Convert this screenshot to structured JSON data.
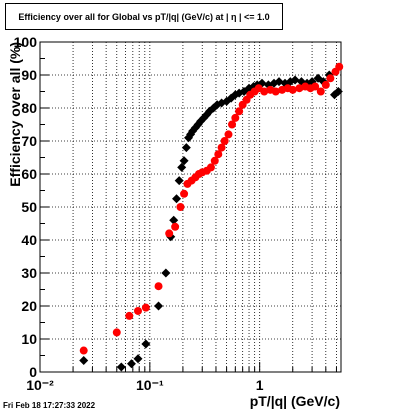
{
  "timestamp": "Fri Feb 18 17:27:33 2022",
  "chart_data": {
    "type": "scatter",
    "title": "Efficiency over all for Global vs pT/|q| (GeV/c) at |  η  | <= 1.0",
    "xlabel": "pT/|q| (GeV/c)",
    "ylabel": "Efficiency over all (%)",
    "xscale": "log",
    "xlim": [
      0.01,
      5.5
    ],
    "ylim": [
      0,
      100
    ],
    "xticks": [
      {
        "value": 0.01,
        "label": "10⁻²"
      },
      {
        "value": 0.1,
        "label": "10⁻¹"
      },
      {
        "value": 1,
        "label": "1"
      }
    ],
    "yticks": [
      0,
      10,
      20,
      30,
      40,
      50,
      60,
      70,
      80,
      90,
      100
    ],
    "grid": true,
    "series": [
      {
        "color": "#000000",
        "marker": "diamond",
        "points": [
          {
            "x": 0.025,
            "y": 3.5
          },
          {
            "x": 0.055,
            "y": 1.5
          },
          {
            "x": 0.068,
            "y": 2.5
          },
          {
            "x": 0.078,
            "y": 4
          },
          {
            "x": 0.092,
            "y": 8.5
          },
          {
            "x": 0.12,
            "y": 20
          },
          {
            "x": 0.14,
            "y": 30
          },
          {
            "x": 0.155,
            "y": 41
          },
          {
            "x": 0.165,
            "y": 46
          },
          {
            "x": 0.175,
            "y": 52.5
          },
          {
            "x": 0.185,
            "y": 58
          },
          {
            "x": 0.195,
            "y": 62
          },
          {
            "x": 0.205,
            "y": 64
          },
          {
            "x": 0.215,
            "y": 68
          },
          {
            "x": 0.225,
            "y": 71
          },
          {
            "x": 0.235,
            "y": 72
          },
          {
            "x": 0.245,
            "y": 73
          },
          {
            "x": 0.26,
            "y": 74
          },
          {
            "x": 0.275,
            "y": 75
          },
          {
            "x": 0.29,
            "y": 76
          },
          {
            "x": 0.31,
            "y": 77
          },
          {
            "x": 0.33,
            "y": 78
          },
          {
            "x": 0.35,
            "y": 79
          },
          {
            "x": 0.38,
            "y": 80
          },
          {
            "x": 0.41,
            "y": 81
          },
          {
            "x": 0.45,
            "y": 81.5
          },
          {
            "x": 0.5,
            "y": 82
          },
          {
            "x": 0.55,
            "y": 83
          },
          {
            "x": 0.6,
            "y": 84
          },
          {
            "x": 0.65,
            "y": 84.5
          },
          {
            "x": 0.72,
            "y": 85
          },
          {
            "x": 0.8,
            "y": 86
          },
          {
            "x": 0.88,
            "y": 86.5
          },
          {
            "x": 0.95,
            "y": 87
          },
          {
            "x": 1.05,
            "y": 87.5
          },
          {
            "x": 1.2,
            "y": 87
          },
          {
            "x": 1.35,
            "y": 87.5
          },
          {
            "x": 1.5,
            "y": 88
          },
          {
            "x": 1.7,
            "y": 87.5
          },
          {
            "x": 1.9,
            "y": 88
          },
          {
            "x": 2.1,
            "y": 88.5
          },
          {
            "x": 2.4,
            "y": 88
          },
          {
            "x": 2.7,
            "y": 87.5
          },
          {
            "x": 3.0,
            "y": 88
          },
          {
            "x": 3.4,
            "y": 89
          },
          {
            "x": 3.8,
            "y": 88
          },
          {
            "x": 4.3,
            "y": 90
          },
          {
            "x": 4.8,
            "y": 84
          },
          {
            "x": 5.2,
            "y": 85
          }
        ]
      },
      {
        "color": "#ff0000",
        "marker": "circle",
        "points": [
          {
            "x": 0.025,
            "y": 6.5
          },
          {
            "x": 0.05,
            "y": 12
          },
          {
            "x": 0.065,
            "y": 17
          },
          {
            "x": 0.078,
            "y": 18.5
          },
          {
            "x": 0.092,
            "y": 19.5
          },
          {
            "x": 0.12,
            "y": 26
          },
          {
            "x": 0.15,
            "y": 42
          },
          {
            "x": 0.17,
            "y": 44
          },
          {
            "x": 0.19,
            "y": 50
          },
          {
            "x": 0.205,
            "y": 54
          },
          {
            "x": 0.22,
            "y": 57
          },
          {
            "x": 0.24,
            "y": 58
          },
          {
            "x": 0.26,
            "y": 59
          },
          {
            "x": 0.28,
            "y": 60
          },
          {
            "x": 0.3,
            "y": 60.5
          },
          {
            "x": 0.33,
            "y": 61
          },
          {
            "x": 0.36,
            "y": 62
          },
          {
            "x": 0.39,
            "y": 64
          },
          {
            "x": 0.42,
            "y": 66
          },
          {
            "x": 0.45,
            "y": 68
          },
          {
            "x": 0.48,
            "y": 70
          },
          {
            "x": 0.52,
            "y": 72
          },
          {
            "x": 0.56,
            "y": 75
          },
          {
            "x": 0.6,
            "y": 77
          },
          {
            "x": 0.65,
            "y": 79
          },
          {
            "x": 0.7,
            "y": 81
          },
          {
            "x": 0.76,
            "y": 82.5
          },
          {
            "x": 0.82,
            "y": 84
          },
          {
            "x": 0.9,
            "y": 85
          },
          {
            "x": 0.98,
            "y": 86
          },
          {
            "x": 1.1,
            "y": 85
          },
          {
            "x": 1.25,
            "y": 85.5
          },
          {
            "x": 1.4,
            "y": 85
          },
          {
            "x": 1.6,
            "y": 85.5
          },
          {
            "x": 1.8,
            "y": 86
          },
          {
            "x": 2.0,
            "y": 85.5
          },
          {
            "x": 2.3,
            "y": 86
          },
          {
            "x": 2.6,
            "y": 86.5
          },
          {
            "x": 2.9,
            "y": 86
          },
          {
            "x": 3.2,
            "y": 86.5
          },
          {
            "x": 3.6,
            "y": 85
          },
          {
            "x": 4.0,
            "y": 87
          },
          {
            "x": 4.4,
            "y": 89
          },
          {
            "x": 4.9,
            "y": 91
          },
          {
            "x": 5.3,
            "y": 92.5
          }
        ]
      }
    ]
  }
}
